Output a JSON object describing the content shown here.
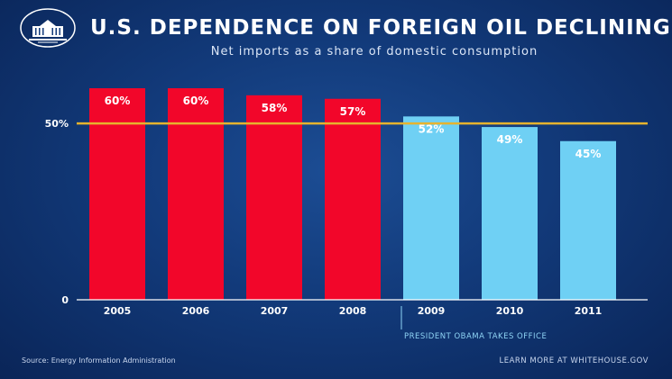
{
  "header": {
    "title": "U.S. DEPENDENCE ON FOREIGN OIL DECLINING",
    "subtitle": "Net imports as a share of domestic consumption"
  },
  "footer": {
    "source": "Source: Energy Information Administration",
    "learn_more": "LEARN MORE AT WHITEHOUSE.GOV"
  },
  "annotation": "PRESIDENT OBAMA TAKES OFFICE",
  "chart_data": {
    "type": "bar",
    "title": "U.S. DEPENDENCE ON FOREIGN OIL DECLINING",
    "subtitle": "Net imports as a share of domestic consumption",
    "categories": [
      "2005",
      "2006",
      "2007",
      "2008",
      "2009",
      "2010",
      "2011"
    ],
    "values": [
      60,
      60,
      58,
      57,
      52,
      49,
      45
    ],
    "value_labels": [
      "60%",
      "60%",
      "58%",
      "57%",
      "52%",
      "49%",
      "45%"
    ],
    "ylim": [
      0,
      60
    ],
    "yticks": [
      {
        "value": 0,
        "label": "0"
      },
      {
        "value": 50,
        "label": "50%"
      }
    ],
    "reference_line": {
      "value": 50,
      "color": "#e6b32e"
    },
    "bar_colors": [
      "#f2062a",
      "#f2062a",
      "#f2062a",
      "#f2062a",
      "#6fd0f4",
      "#6fd0f4",
      "#6fd0f4"
    ],
    "grid": false,
    "legend": "none"
  },
  "colors": {
    "pre_2009": "#f2062a",
    "post_2009": "#6fd0f4",
    "reference_line": "#e6b32e",
    "background": "#123a7a"
  }
}
